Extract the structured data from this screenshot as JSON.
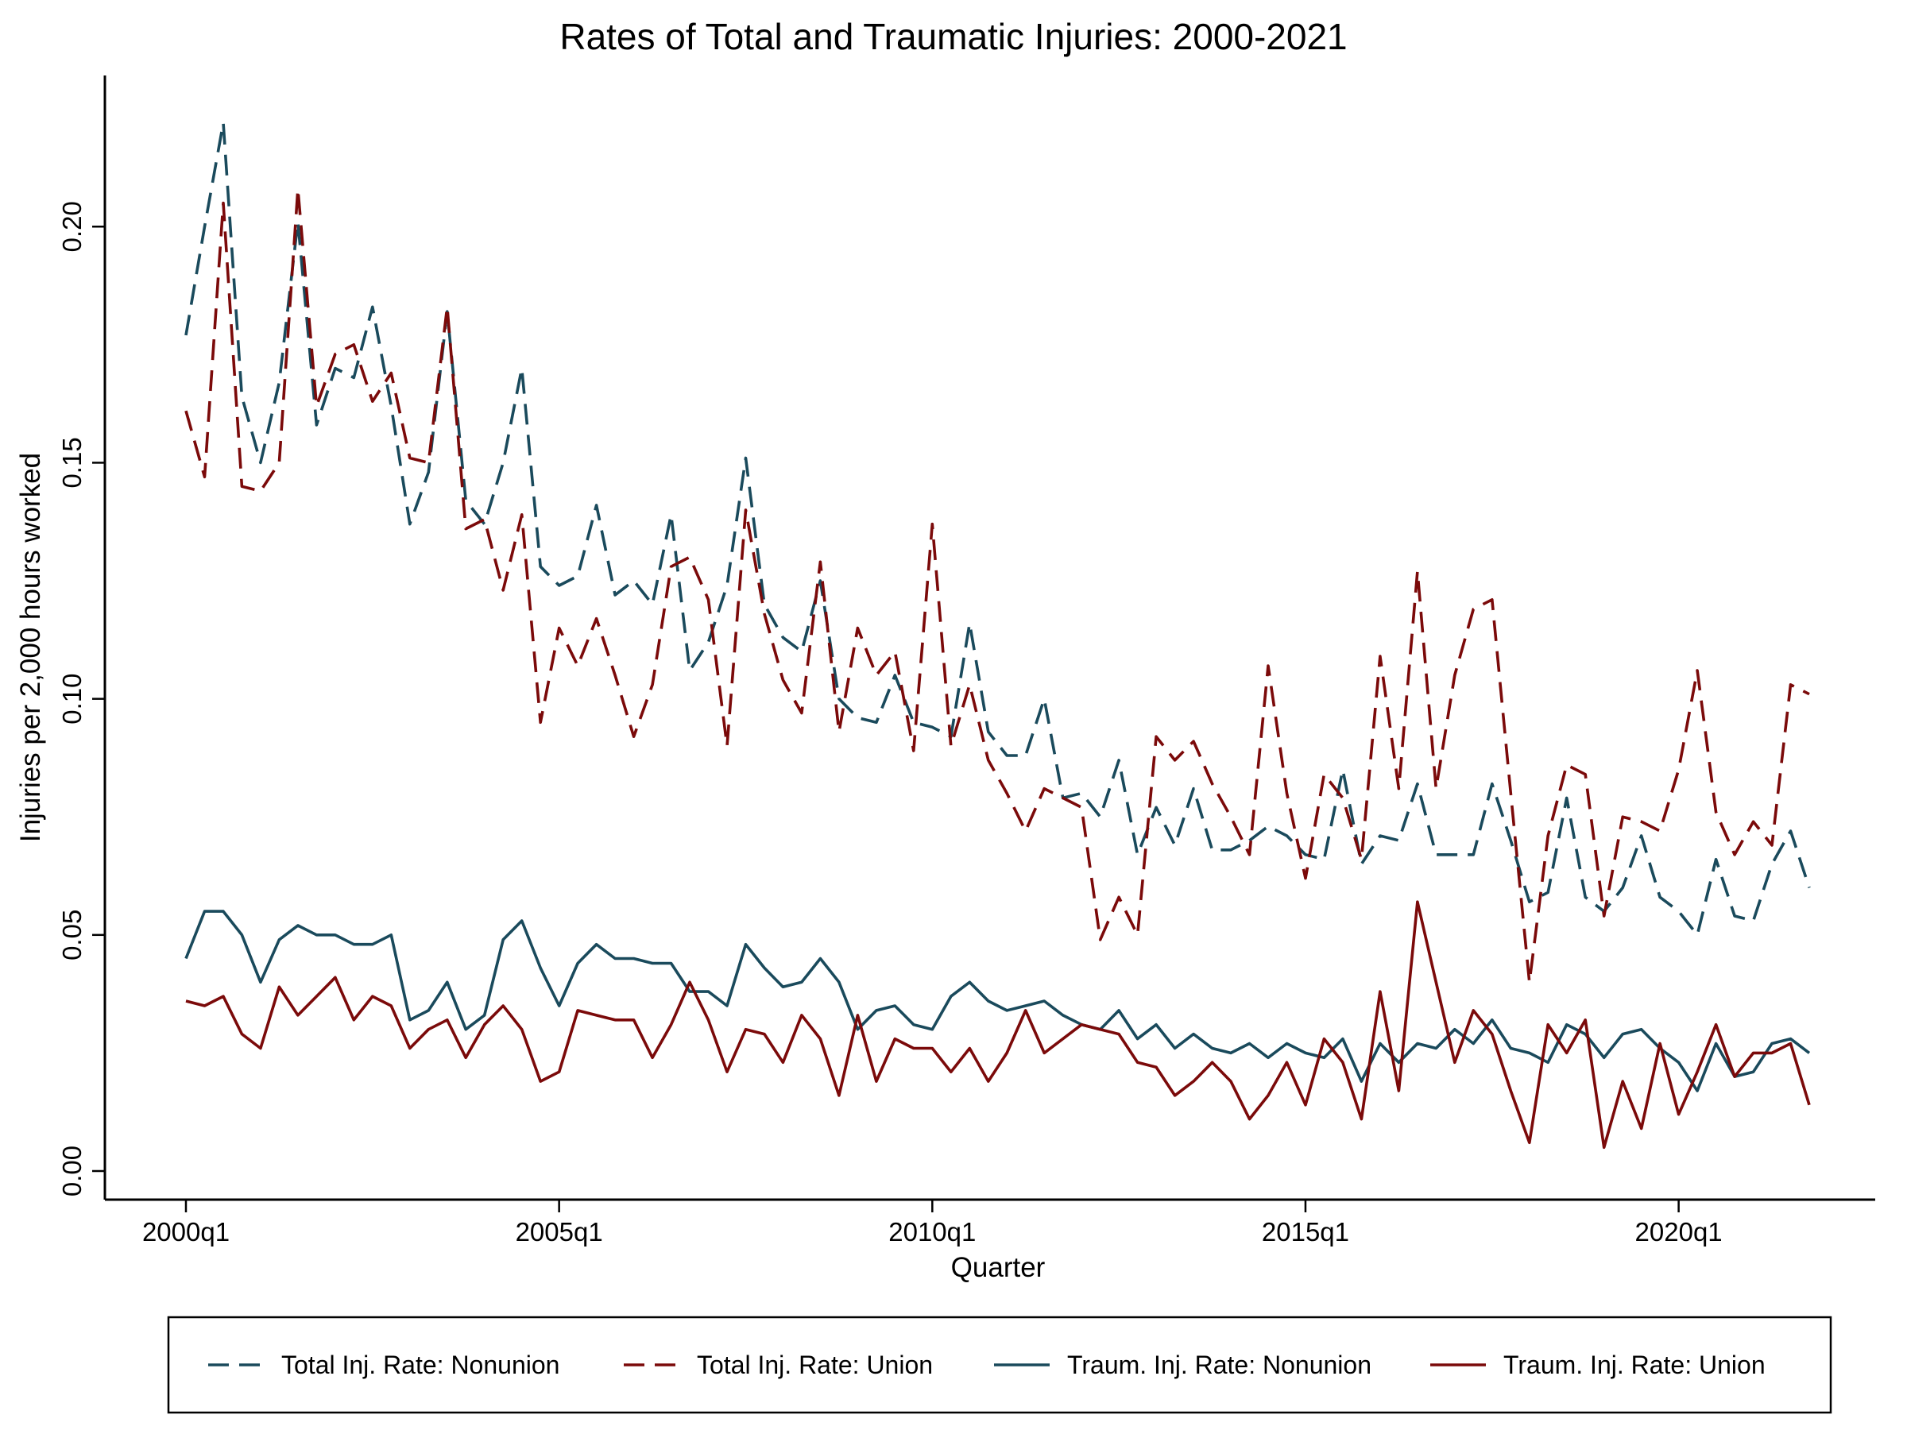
{
  "chart_data": {
    "type": "line",
    "title": "Rates of Total and Traumatic Injuries: 2000-2021",
    "xlabel": "Quarter",
    "ylabel": "Injuries per 2,000 hours worked",
    "x_start_quarter": "2000q1",
    "x_ticks": [
      "2000q1",
      "2005q1",
      "2010q1",
      "2015q1",
      "2020q1"
    ],
    "y_ticks": [
      "0.00",
      "0.05",
      "0.10",
      "0.15",
      "0.20"
    ],
    "ylim": [
      0,
      0.22
    ],
    "grid": false,
    "legend_position": "bottom",
    "series": [
      {
        "name": "Total Inj. Rate: Nonunion",
        "color": "#1a4a5c",
        "dash": "dashed",
        "values": [
          0.177,
          0.2,
          0.222,
          0.164,
          0.15,
          0.167,
          0.201,
          0.158,
          0.17,
          0.168,
          0.183,
          0.162,
          0.137,
          0.148,
          0.182,
          0.142,
          0.137,
          0.15,
          0.17,
          0.128,
          0.124,
          0.126,
          0.141,
          0.122,
          0.125,
          0.12,
          0.139,
          0.106,
          0.112,
          0.124,
          0.151,
          0.12,
          0.113,
          0.11,
          0.125,
          0.1,
          0.096,
          0.095,
          0.105,
          0.095,
          0.094,
          0.092,
          0.116,
          0.093,
          0.088,
          0.088,
          0.1,
          0.079,
          0.08,
          0.075,
          0.087,
          0.067,
          0.077,
          0.069,
          0.081,
          0.068,
          0.068,
          0.07,
          0.073,
          0.071,
          0.067,
          0.066,
          0.085,
          0.065,
          0.071,
          0.07,
          0.082,
          0.067,
          0.067,
          0.067,
          0.082,
          0.07,
          0.057,
          0.059,
          0.079,
          0.058,
          0.055,
          0.06,
          0.071,
          0.058,
          0.055,
          0.05,
          0.066,
          0.054,
          0.053,
          0.065,
          0.072,
          0.06
        ]
      },
      {
        "name": "Total Inj. Rate: Union",
        "color": "#7b0a0a",
        "dash": "dashed",
        "values": [
          0.161,
          0.147,
          0.205,
          0.145,
          0.144,
          0.15,
          0.208,
          0.162,
          0.173,
          0.175,
          0.163,
          0.169,
          0.151,
          0.15,
          0.183,
          0.136,
          0.138,
          0.123,
          0.139,
          0.095,
          0.115,
          0.107,
          0.117,
          0.105,
          0.092,
          0.103,
          0.128,
          0.13,
          0.121,
          0.09,
          0.14,
          0.118,
          0.104,
          0.097,
          0.129,
          0.093,
          0.115,
          0.105,
          0.11,
          0.089,
          0.137,
          0.09,
          0.103,
          0.087,
          0.08,
          0.072,
          0.081,
          0.079,
          0.077,
          0.049,
          0.058,
          0.05,
          0.092,
          0.087,
          0.091,
          0.082,
          0.075,
          0.067,
          0.107,
          0.08,
          0.062,
          0.084,
          0.079,
          0.066,
          0.109,
          0.081,
          0.127,
          0.081,
          0.105,
          0.119,
          0.121,
          0.08,
          0.04,
          0.071,
          0.086,
          0.084,
          0.054,
          0.075,
          0.074,
          0.072,
          0.085,
          0.106,
          0.076,
          0.067,
          0.074,
          0.069,
          0.103,
          0.101
        ]
      },
      {
        "name": "Traum. Inj. Rate: Nonunion",
        "color": "#1a4a5c",
        "dash": "solid",
        "values": [
          0.045,
          0.055,
          0.055,
          0.05,
          0.04,
          0.049,
          0.052,
          0.05,
          0.05,
          0.048,
          0.048,
          0.05,
          0.032,
          0.034,
          0.04,
          0.03,
          0.033,
          0.049,
          0.053,
          0.043,
          0.035,
          0.044,
          0.048,
          0.045,
          0.045,
          0.044,
          0.044,
          0.038,
          0.038,
          0.035,
          0.048,
          0.043,
          0.039,
          0.04,
          0.045,
          0.04,
          0.03,
          0.034,
          0.035,
          0.031,
          0.03,
          0.037,
          0.04,
          0.036,
          0.034,
          0.035,
          0.036,
          0.033,
          0.031,
          0.03,
          0.034,
          0.028,
          0.031,
          0.026,
          0.029,
          0.026,
          0.025,
          0.027,
          0.024,
          0.027,
          0.025,
          0.024,
          0.028,
          0.019,
          0.027,
          0.023,
          0.027,
          0.026,
          0.03,
          0.027,
          0.032,
          0.026,
          0.025,
          0.023,
          0.031,
          0.029,
          0.024,
          0.029,
          0.03,
          0.026,
          0.023,
          0.017,
          0.027,
          0.02,
          0.021,
          0.027,
          0.028,
          0.025
        ]
      },
      {
        "name": "Traum. Inj. Rate: Union",
        "color": "#7b0a0a",
        "dash": "solid",
        "values": [
          0.036,
          0.035,
          0.037,
          0.029,
          0.026,
          0.039,
          0.033,
          0.037,
          0.041,
          0.032,
          0.037,
          0.035,
          0.026,
          0.03,
          0.032,
          0.024,
          0.031,
          0.035,
          0.03,
          0.019,
          0.021,
          0.034,
          0.033,
          0.032,
          0.032,
          0.024,
          0.031,
          0.04,
          0.032,
          0.021,
          0.03,
          0.029,
          0.023,
          0.033,
          0.028,
          0.016,
          0.033,
          0.019,
          0.028,
          0.026,
          0.026,
          0.021,
          0.026,
          0.019,
          0.025,
          0.034,
          0.025,
          0.028,
          0.031,
          0.03,
          0.029,
          0.023,
          0.022,
          0.016,
          0.019,
          0.023,
          0.019,
          0.011,
          0.016,
          0.023,
          0.014,
          0.028,
          0.023,
          0.011,
          0.038,
          0.017,
          0.057,
          0.04,
          0.023,
          0.034,
          0.029,
          0.017,
          0.006,
          0.031,
          0.025,
          0.032,
          0.005,
          0.019,
          0.009,
          0.027,
          0.012,
          0.021,
          0.031,
          0.02,
          0.025,
          0.025,
          0.027,
          0.014
        ]
      }
    ]
  }
}
